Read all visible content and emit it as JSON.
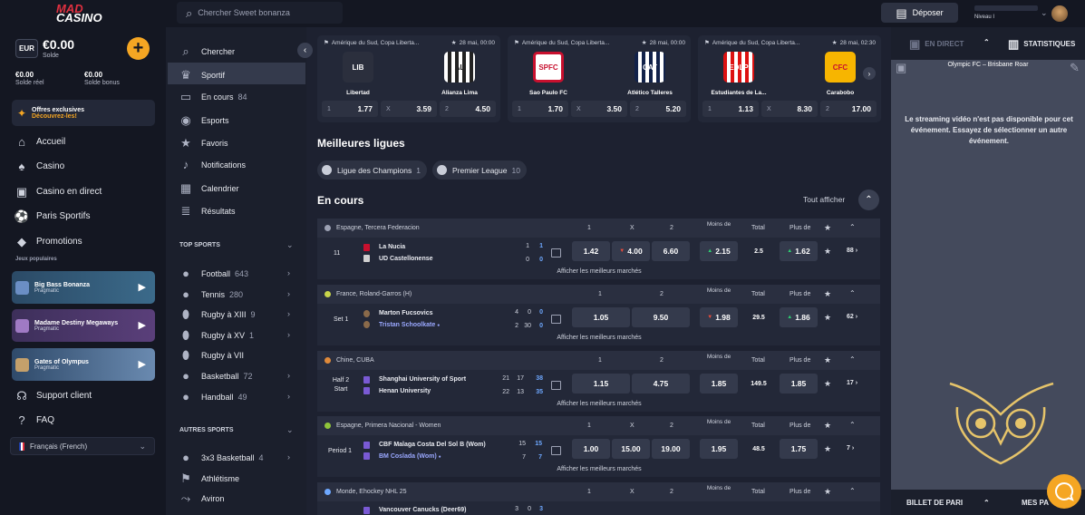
{
  "brand": {
    "top": "MAD",
    "bottom": "CASINO"
  },
  "wallet": {
    "currency": "EUR",
    "balance": "€0.00",
    "balance_label": "Solde",
    "real_value": "€0.00",
    "real_label": "Solde réel",
    "bonus_value": "€0.00",
    "bonus_label": "Solde bonus"
  },
  "promo": {
    "title": "Offres exclusives",
    "link": "Découvrez-les!"
  },
  "main_nav": [
    {
      "label": "Accueil",
      "icon": "home-icon"
    },
    {
      "label": "Casino",
      "icon": "casino-icon"
    },
    {
      "label": "Casino en direct",
      "icon": "live-casino-icon"
    },
    {
      "label": "Paris Sportifs",
      "icon": "sports-icon"
    },
    {
      "label": "Promotions",
      "icon": "diamond-icon"
    }
  ],
  "popular": {
    "label": "Jeux populaires",
    "games": [
      {
        "name": "Big Bass Bonanza",
        "provider": "Pragmatic"
      },
      {
        "name": "Madame Destiny Megaways",
        "provider": "Pragmatic"
      },
      {
        "name": "Gates of Olympus",
        "provider": "Pragmatic"
      }
    ]
  },
  "support": {
    "client": "Support client",
    "faq": "FAQ"
  },
  "language": "Français (French)",
  "search": {
    "placeholder": "Chercher Sweet bonanza"
  },
  "topbar": {
    "deposit": "Déposer",
    "level": "Niveau I"
  },
  "sports_nav": {
    "search": "Chercher",
    "sport": "Sportif",
    "live": "En cours",
    "live_count": "84",
    "esports": "Esports",
    "favoris": "Favoris",
    "notifications": "Notifications",
    "calendar": "Calendrier",
    "results": "Résultats",
    "top_sports_label": "TOP SPORTS",
    "top_sports": [
      {
        "label": "Football",
        "count": "643"
      },
      {
        "label": "Tennis",
        "count": "280"
      },
      {
        "label": "Rugby à XIII",
        "count": "9"
      },
      {
        "label": "Rugby à XV",
        "count": "1"
      },
      {
        "label": "Rugby à VII",
        "count": ""
      },
      {
        "label": "Basketball",
        "count": "72"
      },
      {
        "label": "Handball",
        "count": "49"
      }
    ],
    "other_sports_label": "AUTRES SPORTS",
    "other_sports": [
      {
        "label": "3x3 Basketball",
        "count": "4"
      },
      {
        "label": "Athlétisme",
        "count": ""
      },
      {
        "label": "Aviron",
        "count": ""
      }
    ]
  },
  "featured": [
    {
      "competition": "Amérique du Sud, Copa Liberta...",
      "date": "28 mai, 00:00",
      "home": "Libertad",
      "away": "Alianza Lima",
      "home_logo": "LIB",
      "away_logo": "AL",
      "o1": "1.77",
      "ox": "3.59",
      "o2": "4.50",
      "k1": "1",
      "kx": "X",
      "k2": "2"
    },
    {
      "competition": "Amérique du Sud, Copa Liberta...",
      "date": "28 mai, 00:00",
      "home": "Sao Paulo FC",
      "away": "Atlético Talleres",
      "home_logo": "SPFC",
      "away_logo": "CAT",
      "o1": "1.70",
      "ox": "3.50",
      "o2": "5.20",
      "k1": "1",
      "kx": "X",
      "k2": "2"
    },
    {
      "competition": "Amérique du Sud, Copa Liberta...",
      "date": "28 mai, 02:30",
      "home": "Estudiantes de La...",
      "away": "Carabobo",
      "home_logo": "EDLP",
      "away_logo": "CFC",
      "o1": "1.13",
      "ox": "8.30",
      "o2": "17.00",
      "k1": "1",
      "kx": "X",
      "k2": "2"
    }
  ],
  "leagues": {
    "title": "Meilleures ligues",
    "items": [
      {
        "label": "Ligue des Champions",
        "count": "1"
      },
      {
        "label": "Premier League",
        "count": "10"
      }
    ]
  },
  "live": {
    "title": "En cours",
    "see_all": "Tout afficher",
    "show_markets": "Afficher les meilleurs marchés",
    "col_1": "1",
    "col_x": "X",
    "col_2": "2",
    "col_moins": "Moins de",
    "col_total": "Total",
    "col_plus": "Plus de",
    "events": [
      {
        "category": "Espagne, Tercera Federacion",
        "period": "11",
        "home": "La Nucia",
        "away": "UD Castellonense",
        "hs": [
          "1",
          "1"
        ],
        "as": [
          "0",
          "0"
        ],
        "o1": "1.42",
        "ox": "4.00",
        "o2": "6.60",
        "moins": "2.15",
        "total": "2.5",
        "plus": "1.62",
        "more": "88"
      },
      {
        "category": "France, Roland-Garros (H)",
        "period": "Set 1",
        "home": "Marton Fucsovics",
        "away": "Tristan Schoolkate",
        "hs": [
          "4",
          "0",
          "0"
        ],
        "as": [
          "2",
          "30",
          "0"
        ],
        "o1": "1.05",
        "o2": "9.50",
        "moins": "1.98",
        "total": "29.5",
        "plus": "1.86",
        "more": "62"
      },
      {
        "category": "Chine, CUBA",
        "period": "Half 2 Start",
        "home": "Shanghai University of Sport",
        "away": "Henan University",
        "hs": [
          "21",
          "17",
          "38"
        ],
        "as": [
          "22",
          "13",
          "35"
        ],
        "o1": "1.15",
        "o2": "4.75",
        "moins": "1.85",
        "total": "149.5",
        "plus": "1.85",
        "more": "17"
      },
      {
        "category": "Espagne, Primera Nacional - Women",
        "period": "Period 1",
        "home": "CBF Malaga Costa Del Sol B (Wom)",
        "away": "BM Coslada (Wom)",
        "hs": [
          "15",
          "15"
        ],
        "as": [
          "7",
          "7"
        ],
        "o1": "1.00",
        "ox": "15.00",
        "o2": "19.00",
        "moins": "1.95",
        "total": "48.5",
        "plus": "1.75",
        "more": "7"
      },
      {
        "category": "Monde, Ehockey NHL 25",
        "home": "Vancouver Canucks (Deer69)",
        "hs": [
          "3",
          "0",
          "3"
        ]
      }
    ]
  },
  "right_panel": {
    "tab_live": "EN DIRECT",
    "tab_stats": "STATISTIQUES",
    "match": "Olympic FC – Brisbane Roar",
    "message": "Le streaming vidéo n'est pas disponible pour cet événement. Essayez de sélectionner un autre événement.",
    "bet_slip": "BILLET DE PARI",
    "my_bets": "MES PARIS"
  },
  "colors": {
    "accent": "#f5a623",
    "background": "#1d2130",
    "sidebar": "#141722",
    "live_score": "#6ea8ff"
  }
}
